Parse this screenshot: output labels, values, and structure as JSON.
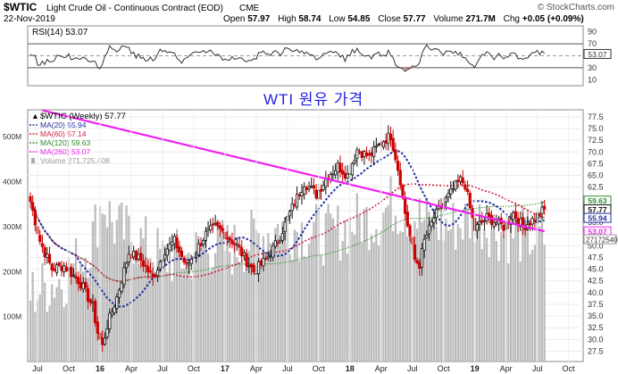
{
  "header": {
    "symbol": "$WTIC",
    "name": "Light Crude Oil - Continuous Contract (EOD)",
    "exchange": "CME",
    "date": "22-Nov-2019",
    "open_label": "Open",
    "open": "57.97",
    "high_label": "High",
    "high": "58.74",
    "low_label": "Low",
    "low": "54.85",
    "close_label": "Close",
    "close": "57.77",
    "volume_label": "Volume",
    "volume": "271.7M",
    "chg_label": "Chg",
    "chg": "+0.05 (+0.09%)",
    "watermark": "© StockCharts.com"
  },
  "annotation": "WTI 원유 가격",
  "colors": {
    "up": "#111111",
    "down": "#cc0000",
    "ma20": "#1f2f9f",
    "ma60": "#d02040",
    "ma120": "#2e8b2e",
    "ma260": "#ee22ee",
    "volume": "#bbbbbb",
    "rsi": "#333333"
  },
  "rsi": {
    "label": "RSI(14) 53.07",
    "ticks": [
      "90",
      "70",
      "50",
      "30",
      "10"
    ],
    "last": "53.07",
    "ylim": [
      0,
      100
    ],
    "bands": [
      30,
      70
    ]
  },
  "legend": [
    {
      "text": "$WTIC (Weekly) 57.77",
      "color": "#111111"
    },
    {
      "text": "MA(20) 55.94",
      "color": "#1f2f9f"
    },
    {
      "text": "MA(60) 57.14",
      "color": "#d02040"
    },
    {
      "text": "MA(120) 59.63",
      "color": "#2e8b2e"
    },
    {
      "text": "MA(260) 53.07",
      "color": "#ee22ee"
    },
    {
      "text": "Volume 271,725,408",
      "color": "#999999"
    }
  ],
  "price_axis": {
    "ticks": [
      "77.5",
      "75.0",
      "72.5",
      "70.0",
      "67.5",
      "65.0",
      "62.5",
      "60.0",
      "57.5",
      "55.0",
      "52.5",
      "50.0",
      "47.5",
      "45.0",
      "42.5",
      "40.0",
      "37.5",
      "35.0",
      "32.5",
      "30.0",
      "27.5"
    ],
    "ylim": [
      25.3,
      79.0
    ],
    "badges": [
      {
        "text": "59.63",
        "value": 59.63,
        "color": "#2e8b2e"
      },
      {
        "text": "57.77",
        "value": 57.77,
        "color": "#111111"
      },
      {
        "text": "55.94",
        "value": 55.94,
        "color": "#1f2f9f"
      },
      {
        "text": "53.07",
        "value": 53.07,
        "color": "#ee22ee"
      }
    ]
  },
  "volume_axis": {
    "ticks": [
      "500M",
      "400M",
      "300M",
      "200M",
      "100M"
    ],
    "badge": "271725408",
    "ylim_m": [
      0,
      560
    ]
  },
  "x_axis": {
    "labels": [
      "Jul",
      "Oct",
      "16",
      "Apr",
      "Jul",
      "Oct",
      "17",
      "Apr",
      "Jul",
      "Oct",
      "18",
      "Apr",
      "Jul",
      "Oct",
      "19",
      "Apr",
      "Jul",
      "Oct"
    ]
  },
  "chart_data": {
    "type": "candlestick",
    "title": "$WTIC (Weekly) 57.77",
    "xlim_weeks": [
      0,
      229
    ],
    "close_anchors": [
      [
        0,
        59.5
      ],
      [
        4,
        51.0
      ],
      [
        9,
        45.0
      ],
      [
        14,
        45.8
      ],
      [
        21,
        42.0
      ],
      [
        26,
        37.0
      ],
      [
        28,
        31.5
      ],
      [
        30,
        28.5
      ],
      [
        32,
        33.0
      ],
      [
        36,
        39.0
      ],
      [
        41,
        48.5
      ],
      [
        46,
        47.0
      ],
      [
        51,
        43.0
      ],
      [
        56,
        49.0
      ],
      [
        60,
        51.0
      ],
      [
        65,
        45.5
      ],
      [
        73,
        52.5
      ],
      [
        77,
        54.0
      ],
      [
        80,
        53.0
      ],
      [
        86,
        50.0
      ],
      [
        89,
        47.5
      ],
      [
        93,
        44.5
      ],
      [
        98,
        47.0
      ],
      [
        103,
        51.0
      ],
      [
        108,
        57.0
      ],
      [
        114,
        63.5
      ],
      [
        119,
        61.0
      ],
      [
        124,
        65.0
      ],
      [
        128,
        67.0
      ],
      [
        132,
        65.0
      ],
      [
        136,
        70.5
      ],
      [
        141,
        69.0
      ],
      [
        147,
        72.5
      ],
      [
        150,
        73.5
      ],
      [
        152,
        69.0
      ],
      [
        154,
        64.0
      ],
      [
        156,
        57.0
      ],
      [
        158,
        52.0
      ],
      [
        160,
        47.0
      ],
      [
        162,
        46.0
      ],
      [
        164,
        51.0
      ],
      [
        168,
        56.0
      ],
      [
        172,
        59.0
      ],
      [
        176,
        62.0
      ],
      [
        179,
        64.0
      ],
      [
        181,
        63.0
      ],
      [
        183,
        58.0
      ],
      [
        185,
        53.5
      ],
      [
        190,
        56.0
      ],
      [
        194,
        55.0
      ],
      [
        197,
        54.0
      ],
      [
        201,
        57.0
      ],
      [
        205,
        54.0
      ],
      [
        209,
        55.5
      ],
      [
        214,
        57.8
      ]
    ],
    "volume_m": [
      [
        0,
        150
      ],
      [
        15,
        190
      ],
      [
        25,
        260
      ],
      [
        30,
        360
      ],
      [
        35,
        300
      ],
      [
        45,
        270
      ],
      [
        55,
        230
      ],
      [
        65,
        230
      ],
      [
        75,
        260
      ],
      [
        85,
        250
      ],
      [
        95,
        280
      ],
      [
        105,
        300
      ],
      [
        115,
        290
      ],
      [
        125,
        280
      ],
      [
        135,
        310
      ],
      [
        145,
        320
      ],
      [
        150,
        350
      ],
      [
        158,
        330
      ],
      [
        165,
        310
      ],
      [
        175,
        300
      ],
      [
        185,
        320
      ],
      [
        195,
        290
      ],
      [
        205,
        280
      ],
      [
        214,
        272
      ]
    ]
  }
}
